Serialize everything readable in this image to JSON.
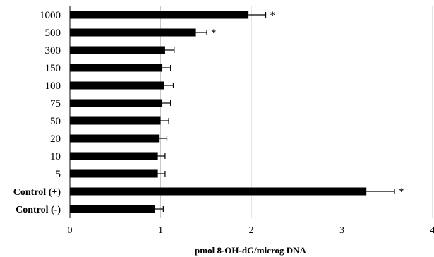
{
  "chart_data": {
    "type": "bar",
    "orientation": "horizontal",
    "categories": [
      "1000",
      "500",
      "300",
      "150",
      "100",
      "75",
      "50",
      "20",
      "10",
      "5",
      "Control (+)",
      "Control (-)"
    ],
    "values": [
      1.97,
      1.39,
      1.05,
      1.02,
      1.04,
      1.02,
      1.0,
      0.99,
      0.97,
      0.97,
      3.27,
      0.94
    ],
    "errors": [
      0.19,
      0.12,
      0.1,
      0.09,
      0.1,
      0.09,
      0.09,
      0.08,
      0.08,
      0.08,
      0.31,
      0.09
    ],
    "significance": [
      "*",
      "*",
      "",
      "",
      "",
      "",
      "",
      "",
      "",
      "",
      "*",
      ""
    ],
    "xlabel": "pmol 8-OH-dG/microg DNA",
    "ylabel": "",
    "xlim": [
      0,
      4
    ],
    "xticks": [
      "0",
      "1",
      "2",
      "3",
      "4"
    ],
    "grid": "vertical",
    "bar_color": "#000000",
    "grid_color": "#c8c8c8"
  }
}
